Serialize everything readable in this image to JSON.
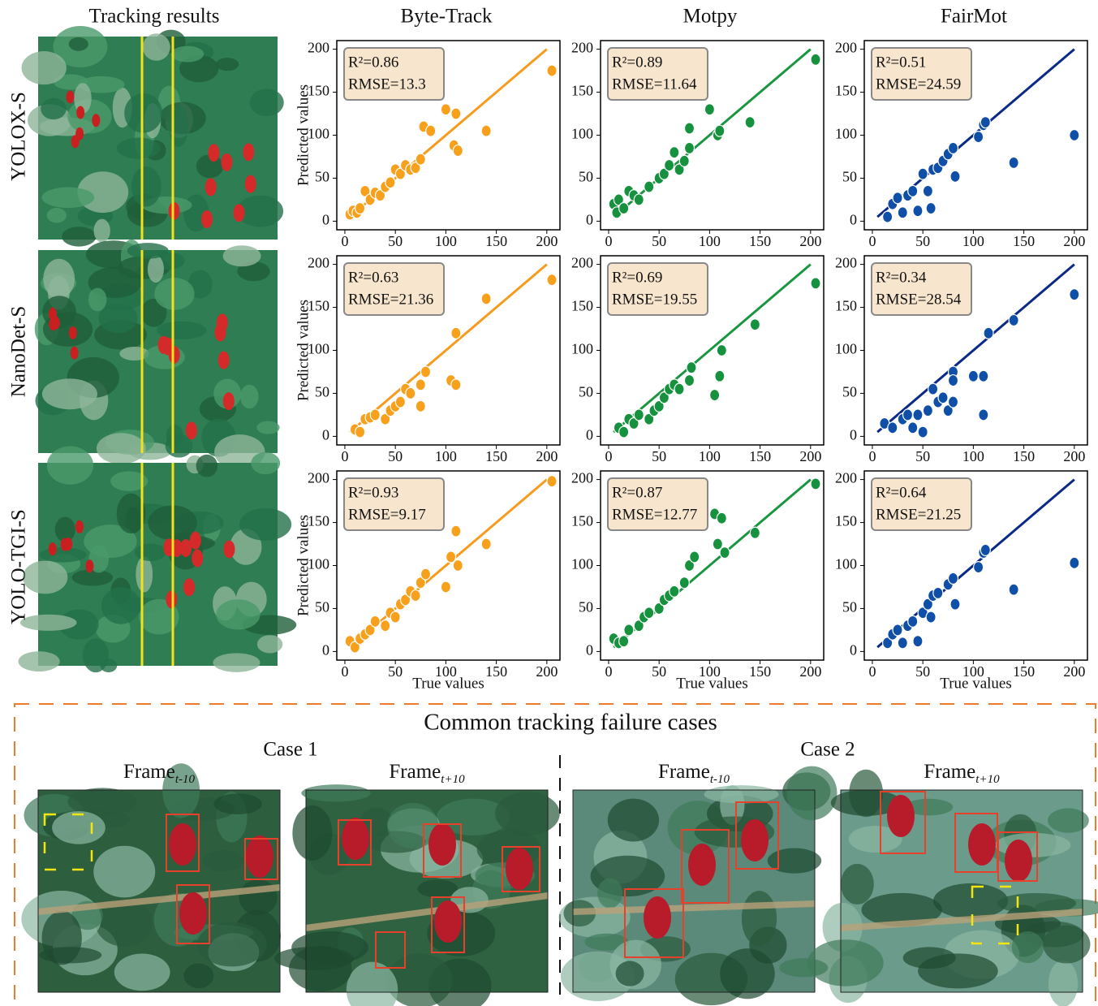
{
  "columns": [
    "Tracking results",
    "Byte-Track",
    "Motpy",
    "FairMot"
  ],
  "rows": [
    "YOLOX-S",
    "NanoDet-S",
    "YOLO-TGI-S"
  ],
  "chart_data": [
    {
      "type": "scatter",
      "ylabel": "Predicted values",
      "annotations": [
        "R²=0.86",
        "RMSE=13.3"
      ],
      "color": "#f7a01c",
      "line_color": "#f59c1e",
      "xlim": [
        -8,
        213
      ],
      "ylim": [
        -10,
        210
      ],
      "xticks": [
        0,
        50,
        100,
        150,
        200
      ],
      "yticks": [
        0,
        50,
        100,
        150,
        200
      ],
      "fit_line": {
        "x": [
          5,
          200
        ],
        "y": [
          5,
          200
        ]
      },
      "x": [
        5,
        8,
        12,
        15,
        20,
        25,
        30,
        35,
        40,
        45,
        50,
        55,
        60,
        65,
        70,
        75,
        78,
        85,
        100,
        108,
        110,
        112,
        140,
        205
      ],
      "y": [
        8,
        12,
        10,
        15,
        35,
        25,
        33,
        30,
        40,
        45,
        60,
        55,
        65,
        60,
        62,
        72,
        110,
        105,
        130,
        88,
        125,
        82,
        105,
        175
      ]
    },
    {
      "type": "scatter",
      "annotations": [
        "R²=0.89",
        "RMSE=11.64"
      ],
      "color": "#16923e",
      "line_color": "#1a9641",
      "xlim": [
        -8,
        213
      ],
      "ylim": [
        -10,
        210
      ],
      "xticks": [
        0,
        50,
        100,
        150,
        200
      ],
      "yticks": [
        0,
        50,
        100,
        150,
        200
      ],
      "fit_line": {
        "x": [
          5,
          200
        ],
        "y": [
          5,
          200
        ]
      },
      "x": [
        5,
        8,
        10,
        15,
        20,
        25,
        30,
        40,
        50,
        55,
        60,
        65,
        70,
        75,
        80,
        80,
        100,
        108,
        110,
        140,
        205
      ],
      "y": [
        20,
        10,
        25,
        15,
        35,
        30,
        25,
        40,
        50,
        55,
        65,
        80,
        60,
        70,
        85,
        108,
        130,
        100,
        105,
        115,
        188
      ]
    },
    {
      "type": "scatter",
      "annotations": [
        "R²=0.51",
        "RMSE=24.59"
      ],
      "color": "#0f4fa8",
      "line_color": "#0b2a86",
      "xlim": [
        -8,
        213
      ],
      "ylim": [
        -10,
        210
      ],
      "xticks": [
        0,
        50,
        100,
        150,
        200
      ],
      "yticks": [
        0,
        50,
        100,
        150,
        200
      ],
      "fit_line": {
        "x": [
          5,
          200
        ],
        "y": [
          5,
          200
        ]
      },
      "x": [
        15,
        20,
        25,
        30,
        35,
        40,
        45,
        50,
        55,
        58,
        60,
        65,
        70,
        75,
        80,
        82,
        105,
        110,
        112,
        140,
        200
      ],
      "y": [
        5,
        20,
        27,
        10,
        30,
        35,
        12,
        55,
        35,
        15,
        60,
        62,
        70,
        78,
        85,
        52,
        98,
        112,
        115,
        68,
        100
      ]
    },
    {
      "type": "scatter",
      "ylabel": "Predicted values",
      "annotations": [
        "R²=0.63",
        "RMSE=21.36"
      ],
      "color": "#f7a01c",
      "line_color": "#f59c1e",
      "xlim": [
        -8,
        213
      ],
      "ylim": [
        -10,
        210
      ],
      "xticks": [
        0,
        50,
        100,
        150,
        200
      ],
      "yticks": [
        0,
        50,
        100,
        150,
        200
      ],
      "fit_line": {
        "x": [
          5,
          200
        ],
        "y": [
          5,
          200
        ]
      },
      "x": [
        10,
        15,
        20,
        25,
        30,
        40,
        45,
        50,
        55,
        60,
        65,
        75,
        75,
        80,
        105,
        110,
        110,
        140,
        205
      ],
      "y": [
        8,
        5,
        20,
        22,
        25,
        20,
        30,
        35,
        40,
        55,
        50,
        35,
        60,
        75,
        65,
        60,
        120,
        160,
        182
      ]
    },
    {
      "type": "scatter",
      "annotations": [
        "R²=0.69",
        "RMSE=19.55"
      ],
      "color": "#16923e",
      "line_color": "#1a9641",
      "xlim": [
        -8,
        213
      ],
      "ylim": [
        -10,
        210
      ],
      "xticks": [
        0,
        50,
        100,
        150,
        200
      ],
      "yticks": [
        0,
        50,
        100,
        150,
        200
      ],
      "fit_line": {
        "x": [
          5,
          200
        ],
        "y": [
          5,
          200
        ]
      },
      "x": [
        10,
        15,
        20,
        25,
        30,
        40,
        45,
        50,
        55,
        60,
        65,
        70,
        80,
        82,
        105,
        110,
        112,
        145,
        205
      ],
      "y": [
        10,
        5,
        20,
        15,
        25,
        20,
        30,
        35,
        45,
        55,
        60,
        55,
        65,
        80,
        48,
        70,
        100,
        130,
        178
      ]
    },
    {
      "type": "scatter",
      "annotations": [
        "R²=0.34",
        "RMSE=28.54"
      ],
      "color": "#0f4fa8",
      "line_color": "#0b2a86",
      "xlim": [
        -8,
        213
      ],
      "ylim": [
        -10,
        210
      ],
      "xticks": [
        0,
        50,
        100,
        150,
        200
      ],
      "yticks": [
        0,
        50,
        100,
        150,
        200
      ],
      "fit_line": {
        "x": [
          5,
          200
        ],
        "y": [
          5,
          200
        ]
      },
      "x": [
        12,
        20,
        30,
        35,
        40,
        45,
        50,
        55,
        60,
        65,
        70,
        75,
        80,
        80,
        80,
        100,
        110,
        110,
        115,
        140,
        200
      ],
      "y": [
        15,
        10,
        20,
        25,
        10,
        25,
        5,
        30,
        55,
        40,
        45,
        30,
        40,
        75,
        65,
        70,
        25,
        70,
        120,
        135,
        165
      ]
    },
    {
      "type": "scatter",
      "ylabel": "Predicted values",
      "xlabel": "True values",
      "annotations": [
        "R²=0.93",
        "RMSE=9.17"
      ],
      "color": "#f7a01c",
      "line_color": "#f59c1e",
      "xlim": [
        -8,
        213
      ],
      "ylim": [
        -10,
        210
      ],
      "xticks": [
        0,
        50,
        100,
        150,
        200
      ],
      "yticks": [
        0,
        50,
        100,
        150,
        200
      ],
      "fit_line": {
        "x": [
          5,
          200
        ],
        "y": [
          5,
          200
        ]
      },
      "x": [
        5,
        10,
        15,
        20,
        25,
        30,
        40,
        45,
        50,
        55,
        60,
        65,
        70,
        75,
        80,
        100,
        105,
        110,
        112,
        140,
        205
      ],
      "y": [
        12,
        5,
        15,
        20,
        25,
        35,
        30,
        45,
        40,
        55,
        60,
        70,
        65,
        80,
        90,
        75,
        110,
        140,
        100,
        125,
        198
      ]
    },
    {
      "type": "scatter",
      "xlabel": "True values",
      "annotations": [
        "R²=0.87",
        "RMSE=12.77"
      ],
      "color": "#16923e",
      "line_color": "#1a9641",
      "xlim": [
        -8,
        213
      ],
      "ylim": [
        -10,
        210
      ],
      "xticks": [
        0,
        50,
        100,
        150,
        200
      ],
      "yticks": [
        0,
        50,
        100,
        150,
        200
      ],
      "fit_line": {
        "x": [
          5,
          200
        ],
        "y": [
          5,
          200
        ]
      },
      "x": [
        5,
        10,
        15,
        20,
        30,
        35,
        40,
        50,
        55,
        60,
        65,
        75,
        80,
        85,
        105,
        108,
        112,
        115,
        145,
        205
      ],
      "y": [
        15,
        10,
        12,
        25,
        30,
        40,
        45,
        50,
        60,
        65,
        70,
        80,
        100,
        110,
        160,
        125,
        155,
        115,
        138,
        195
      ]
    },
    {
      "type": "scatter",
      "xlabel": "True values",
      "annotations": [
        "R²=0.64",
        "RMSE=21.25"
      ],
      "color": "#0f4fa8",
      "line_color": "#0b2a86",
      "xlim": [
        -8,
        213
      ],
      "ylim": [
        -10,
        210
      ],
      "xticks": [
        0,
        50,
        100,
        150,
        200
      ],
      "yticks": [
        0,
        50,
        100,
        150,
        200
      ],
      "fit_line": {
        "x": [
          5,
          200
        ],
        "y": [
          5,
          200
        ]
      },
      "x": [
        15,
        20,
        25,
        30,
        35,
        40,
        45,
        50,
        55,
        58,
        60,
        65,
        75,
        80,
        82,
        105,
        110,
        112,
        140,
        200
      ],
      "y": [
        10,
        20,
        25,
        10,
        30,
        35,
        12,
        45,
        55,
        40,
        65,
        68,
        78,
        85,
        55,
        98,
        115,
        118,
        72,
        103
      ]
    }
  ],
  "failure_section": {
    "title": "Common tracking failure cases",
    "cases": [
      {
        "label": "Case 1",
        "frames": [
          {
            "text": "Frame",
            "sub": "t-10"
          },
          {
            "text": "Frame",
            "sub": "t+10"
          }
        ]
      },
      {
        "label": "Case 2",
        "frames": [
          {
            "text": "Frame",
            "sub": "t-10"
          },
          {
            "text": "Frame",
            "sub": "t+10"
          }
        ]
      }
    ]
  }
}
